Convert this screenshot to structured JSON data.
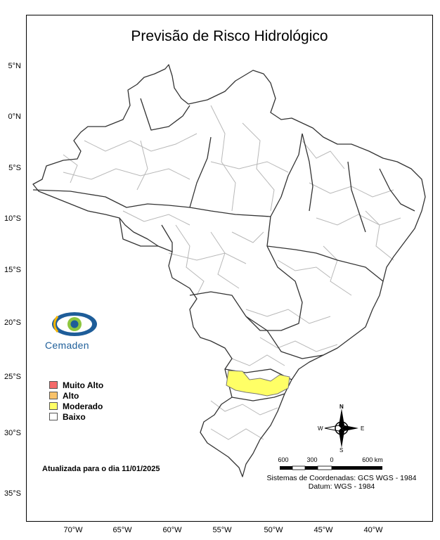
{
  "title": "Previsão de Risco Hidrológico",
  "y_axis_labels": [
    "5°N",
    "0°N",
    "5°S",
    "10°S",
    "15°S",
    "20°S",
    "25°S",
    "30°S",
    "35°S"
  ],
  "x_axis_labels": [
    "70°W",
    "65°W",
    "60°W",
    "55°W",
    "50°W",
    "45°W",
    "40°W"
  ],
  "logo_text": "Cemaden",
  "legend": [
    {
      "label": "Muito Alto",
      "color": "#f46a6a"
    },
    {
      "label": "Alto",
      "color": "#f8c26a"
    },
    {
      "label": "Moderado",
      "color": "#ffff66"
    },
    {
      "label": "Baixo",
      "color": "#ffffff"
    }
  ],
  "updated_text": "Atualizada para o dia 11/01/2025",
  "scale_labels": [
    "600",
    "300",
    "0",
    "600 km"
  ],
  "crs_line1": "Sistemas de Coordenadas: GCS WGS - 1984",
  "crs_line2": "Datum: WGS - 1984",
  "compass": {
    "n": "N",
    "s": "S",
    "e": "E",
    "w": "W"
  },
  "risk_regions": [
    {
      "name": "south-parana-santa-catarina",
      "level": "Moderado"
    }
  ]
}
